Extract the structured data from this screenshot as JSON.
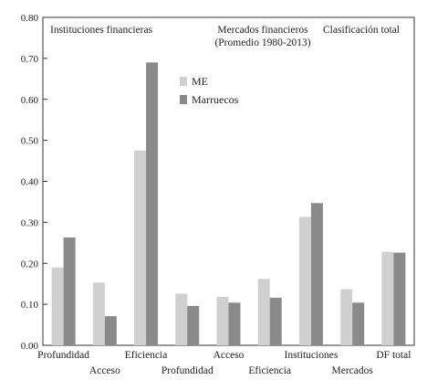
{
  "chart_data": {
    "type": "bar",
    "ylim": [
      0,
      0.8
    ],
    "yticks": [
      "0.00",
      "0.10",
      "0.20",
      "0.30",
      "0.40",
      "0.50",
      "0.60",
      "0.70",
      "0.80"
    ],
    "categories": [
      "Profundidad",
      "Acceso",
      "Eficiencia",
      "Profundidad",
      "Acceso",
      "Eficiencia",
      "Instituciones",
      "Mercados",
      "DF total"
    ],
    "series": [
      {
        "name": "ME",
        "color": "#d0d0d0",
        "values": [
          0.19,
          0.153,
          0.475,
          0.126,
          0.118,
          0.162,
          0.313,
          0.137,
          0.228
        ]
      },
      {
        "name": "Marruecos",
        "color": "#8a8a8a",
        "values": [
          0.263,
          0.071,
          0.69,
          0.096,
          0.104,
          0.116,
          0.347,
          0.104,
          0.226
        ]
      }
    ],
    "group_labels": [
      "Instituciones financieras",
      "Mercados financieros",
      "(Promedio 1980-2013)",
      "Clasificación total"
    ],
    "legend": {
      "position": "top-center"
    },
    "grid": false
  }
}
